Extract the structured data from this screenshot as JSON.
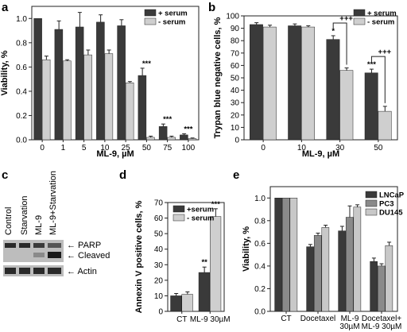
{
  "figure": {
    "panel_labels": [
      "a",
      "b",
      "c",
      "d",
      "e"
    ]
  },
  "colors": {
    "serum_plus": "#3a3a3a",
    "serum_minus": "#cfcfcf",
    "lncap": "#3a3a3a",
    "pc3": "#8a8a8a",
    "du145": "#c8c8c8"
  },
  "chart_data": [
    {
      "panel": "a",
      "type": "bar",
      "categories": [
        "0",
        "1",
        "5",
        "10",
        "25",
        "50",
        "75",
        "100"
      ],
      "xlabel": "ML-9, µM",
      "ylabel": "Viability, %",
      "ylim": [
        0,
        1.1
      ],
      "yticks": [
        "0.0",
        "0.2",
        "0.4",
        "0.6",
        "0.8",
        "1.0"
      ],
      "series": [
        {
          "name": "+ serum",
          "values": [
            1.0,
            0.91,
            0.93,
            0.97,
            0.94,
            0.53,
            0.11,
            0.04
          ],
          "errors": [
            0.0,
            0.07,
            0.12,
            0.06,
            0.05,
            0.06,
            0.02,
            0.01
          ]
        },
        {
          "name": "- serum",
          "values": [
            0.66,
            0.65,
            0.7,
            0.71,
            0.47,
            0.02,
            0.02,
            0.01
          ],
          "errors": [
            0.03,
            0.01,
            0.04,
            0.03,
            0.01,
            0.01,
            0.01,
            0.005
          ]
        }
      ],
      "annotations": [
        {
          "category": "50",
          "text": "***"
        },
        {
          "category": "75",
          "text": "***"
        },
        {
          "category": "100",
          "text": "***"
        }
      ],
      "legend": "top-right"
    },
    {
      "panel": "b",
      "type": "bar",
      "categories": [
        "0",
        "10",
        "30",
        "50"
      ],
      "xlabel": "ML-9, µM",
      "ylabel": "Trypan blue negative cells, %",
      "ylim": [
        0,
        100
      ],
      "yticks": [
        "0",
        "10",
        "20",
        "30",
        "40",
        "50",
        "60",
        "70",
        "80",
        "90",
        "100"
      ],
      "series": [
        {
          "name": "+ serum",
          "values": [
            93,
            92,
            81,
            54
          ],
          "errors": [
            1.5,
            1.5,
            3,
            3
          ]
        },
        {
          "name": "- serum",
          "values": [
            91,
            91,
            56,
            23
          ],
          "errors": [
            1.5,
            1.0,
            2,
            4
          ]
        }
      ],
      "annotations": [
        {
          "category": "30",
          "text": "*"
        },
        {
          "category": "50",
          "text": "***"
        },
        {
          "category": "30",
          "text": "+++",
          "bracket": true
        },
        {
          "category": "50",
          "text": "+++",
          "bracket": true
        }
      ],
      "legend": "top-right"
    },
    {
      "panel": "d",
      "type": "bar",
      "categories": [
        "CT",
        "ML-9 30µM"
      ],
      "xlabel": "",
      "ylabel": "Annexin V positive cells, %",
      "ylim": [
        0,
        70
      ],
      "yticks": [
        "0",
        "10",
        "20",
        "30",
        "40",
        "50",
        "60",
        "70"
      ],
      "series": [
        {
          "name": "+serum",
          "values": [
            10,
            25
          ],
          "errors": [
            1.5,
            3.5
          ]
        },
        {
          "name": "- serum",
          "values": [
            11,
            61
          ],
          "errors": [
            1.5,
            5
          ]
        }
      ],
      "annotations": [
        {
          "category": "ML-9 30µM",
          "text": "**"
        },
        {
          "category": "ML-9 30µM",
          "text": "***"
        }
      ],
      "legend": "top-left"
    },
    {
      "panel": "e",
      "type": "bar",
      "categories": [
        "CT",
        "Docetaxel",
        "ML-9 30µM",
        "Docetaxel+ ML-9 30µM"
      ],
      "category_lines": [
        [
          "CT"
        ],
        [
          "Docetaxel"
        ],
        [
          "ML-9",
          "30µM"
        ],
        [
          "Docetaxel+",
          "ML-9 30µM"
        ]
      ],
      "xlabel": "",
      "ylabel": "Viability, %",
      "ylim": [
        0,
        1.1
      ],
      "yticks": [
        "0.0",
        "0.2",
        "0.4",
        "0.6",
        "0.8",
        "1.0"
      ],
      "series": [
        {
          "name": "LNCaP",
          "values": [
            1.0,
            0.57,
            0.71,
            0.44
          ],
          "errors": [
            0,
            0.02,
            0.04,
            0.03
          ]
        },
        {
          "name": "PC3",
          "values": [
            1.0,
            0.67,
            0.83,
            0.4
          ],
          "errors": [
            0,
            0.02,
            0.1,
            0.02
          ]
        },
        {
          "name": "DU145",
          "values": [
            1.0,
            0.74,
            0.92,
            0.58
          ],
          "errors": [
            0,
            0.02,
            0.02,
            0.03
          ]
        }
      ],
      "legend": "top-right"
    }
  ],
  "blot": {
    "panel": "c",
    "lanes": [
      "Control",
      "Starvation",
      "ML-9",
      "ML-9+Starvation"
    ],
    "bands": [
      "← PARP",
      "← Cleaved",
      "← Actin"
    ]
  }
}
